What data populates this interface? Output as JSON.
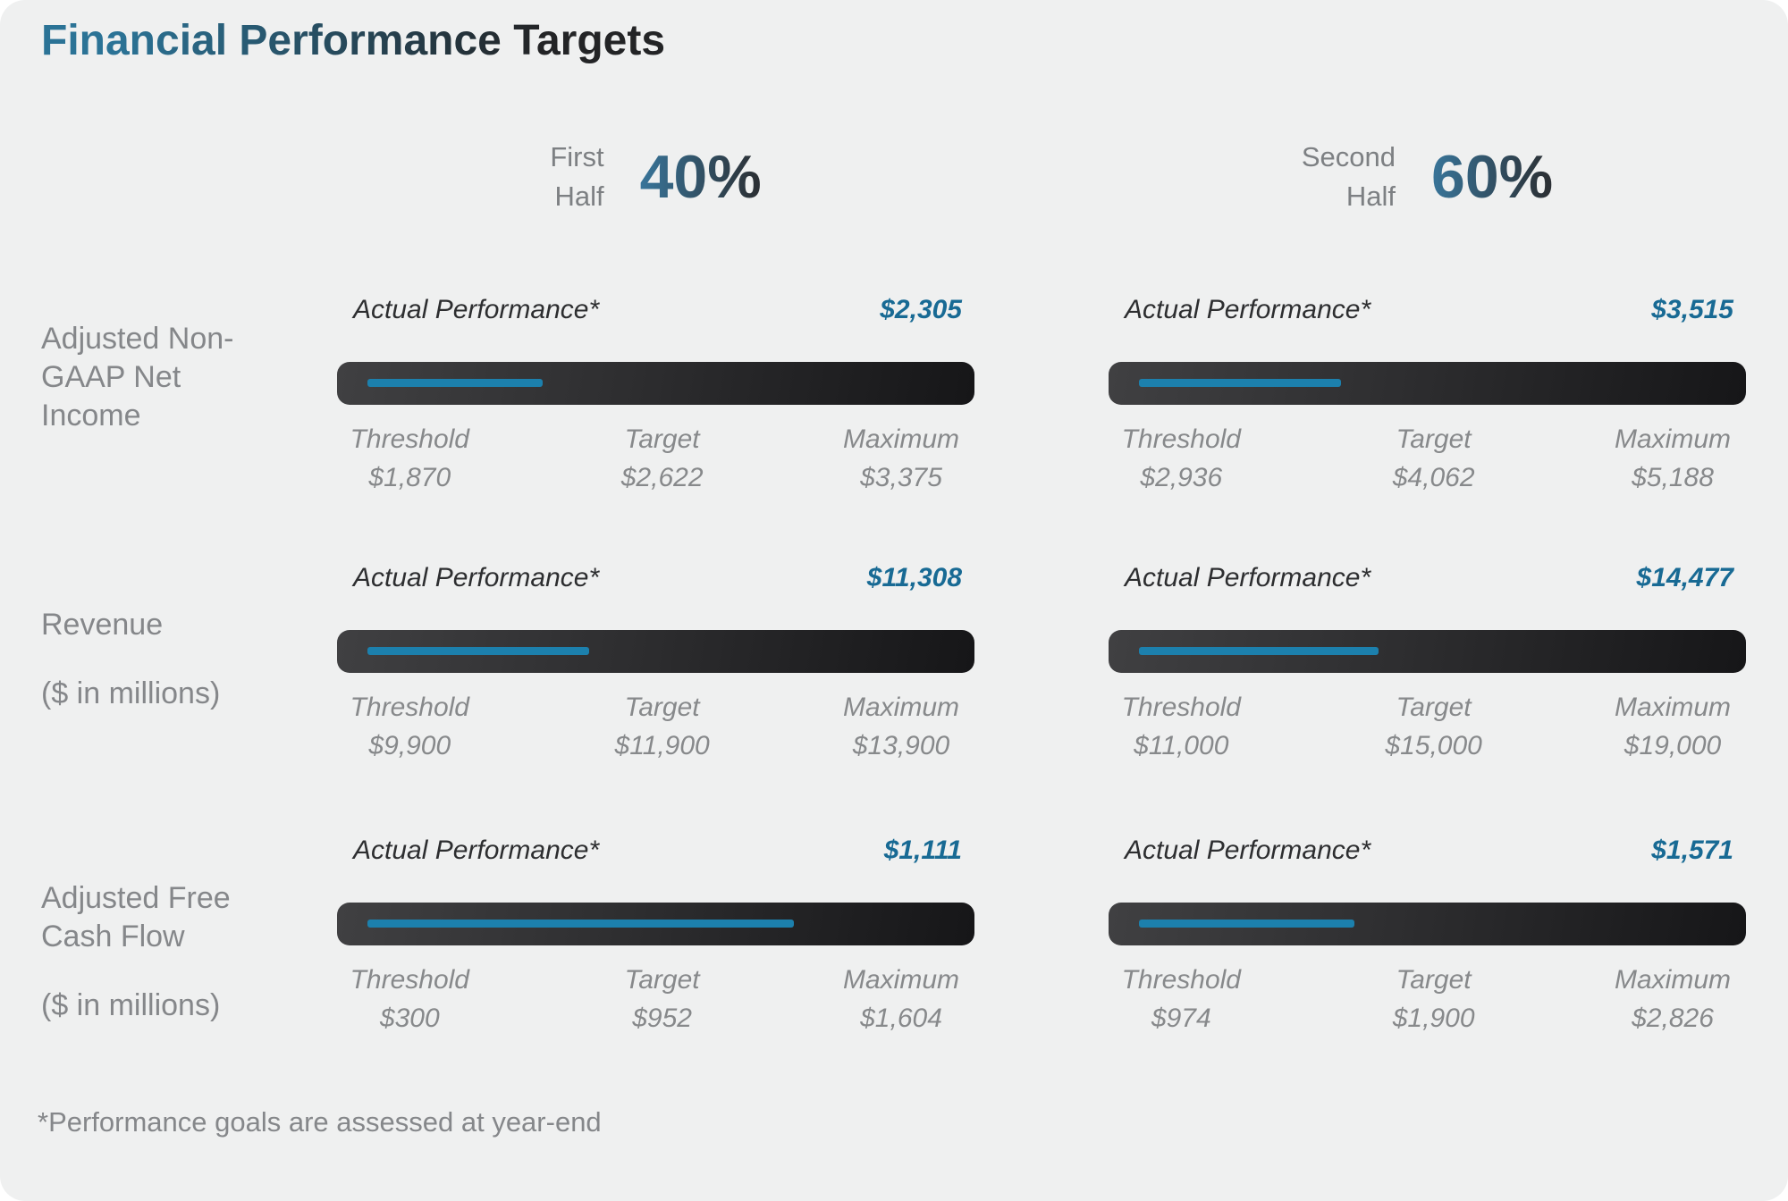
{
  "title": "Financial Performance Targets",
  "footnote": "*Performance goals are assessed at year-end",
  "labels": {
    "actual": "Actual Performance*",
    "threshold": "Threshold",
    "target": "Target",
    "maximum": "Maximum"
  },
  "halves": [
    {
      "name_line1": "First",
      "name_line2": "Half",
      "weight": "40%"
    },
    {
      "name_line1": "Second",
      "name_line2": "Half",
      "weight": "60%"
    }
  ],
  "metrics": [
    {
      "label": "Adjusted Non-GAAP Net Income",
      "unit": "",
      "cells": [
        {
          "actual": "$2,305",
          "threshold": "$1,870",
          "target": "$2,622",
          "maximum": "$3,375",
          "line_pct": 27.4
        },
        {
          "actual": "$3,515",
          "threshold": "$2,936",
          "target": "$4,062",
          "maximum": "$5,188",
          "line_pct": 31.6
        }
      ]
    },
    {
      "label": "Revenue",
      "unit": "($ in millions)",
      "cells": [
        {
          "actual": "$11,308",
          "threshold": "$9,900",
          "target": "$11,900",
          "maximum": "$13,900",
          "line_pct": 34.7
        },
        {
          "actual": "$14,477",
          "threshold": "$11,000",
          "target": "$15,000",
          "maximum": "$19,000",
          "line_pct": 37.6
        }
      ]
    },
    {
      "label": "Adjusted Free Cash Flow",
      "unit": "($ in millions)",
      "cells": [
        {
          "actual": "$1,111",
          "threshold": "$300",
          "target": "$952",
          "maximum": "$1,604",
          "line_pct": 66.8
        },
        {
          "actual": "$1,571",
          "threshold": "$974",
          "target": "$1,900",
          "maximum": "$2,826",
          "line_pct": 33.8
        }
      ]
    }
  ],
  "colors": {
    "card_background": "#eff0f0",
    "accent_blue_line": "#1c80ad",
    "actual_value_blue": "#186a94",
    "title_teal": "#2b7396",
    "title_dark": "#232426",
    "bar_dark_left": "#404042",
    "bar_dark_right": "#161618",
    "gray_text": "#85878a"
  },
  "chart_data": {
    "type": "bullet",
    "title": "Financial Performance Targets",
    "groups": [
      {
        "period": "First Half",
        "weight_pct": 40
      },
      {
        "period": "Second Half",
        "weight_pct": 60
      }
    ],
    "metrics": [
      {
        "name": "Adjusted Non-GAAP Net Income",
        "unit": "",
        "first_half": {
          "actual": 2305,
          "threshold": 1870,
          "target": 2622,
          "maximum": 3375
        },
        "second_half": {
          "actual": 3515,
          "threshold": 2936,
          "target": 4062,
          "maximum": 5188
        }
      },
      {
        "name": "Revenue",
        "unit": "$ in millions",
        "first_half": {
          "actual": 11308,
          "threshold": 9900,
          "target": 11900,
          "maximum": 13900
        },
        "second_half": {
          "actual": 14477,
          "threshold": 11000,
          "target": 15000,
          "maximum": 19000
        }
      },
      {
        "name": "Adjusted Free Cash Flow",
        "unit": "$ in millions",
        "first_half": {
          "actual": 1111,
          "threshold": 300,
          "target": 952,
          "maximum": 1604
        },
        "second_half": {
          "actual": 1571,
          "threshold": 974,
          "target": 1900,
          "maximum": 2826
        }
      }
    ],
    "footnote": "*Performance goals are assessed at year-end",
    "legend_position": "none",
    "grid": false
  }
}
